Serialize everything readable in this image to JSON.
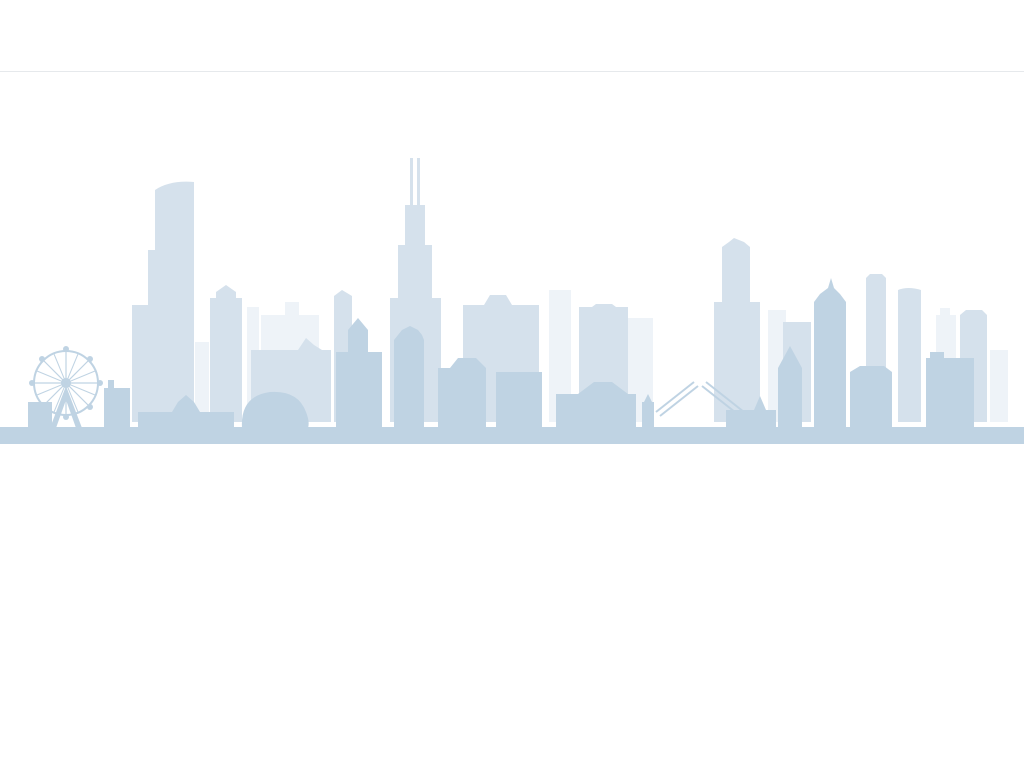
{
  "page": {
    "header": {},
    "illustration": {
      "kind": "city-skyline",
      "colors": {
        "far": "#eef3f8",
        "mid": "#d5e1ec",
        "near": "#bfd3e3"
      }
    }
  }
}
